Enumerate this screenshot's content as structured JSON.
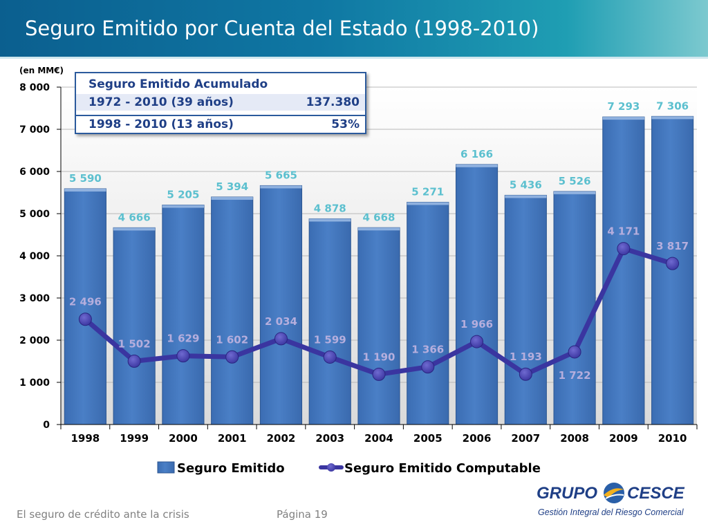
{
  "header": {
    "title": "Seguro Emitido por Cuenta del Estado (1998-2010)"
  },
  "summary_box": {
    "heading": "Seguro Emitido Acumulado",
    "rows": [
      {
        "label": "1972 - 2010 (39 años)",
        "value": "137.380"
      },
      {
        "label": "1998 - 2010  (13 años)",
        "value": "53%"
      }
    ]
  },
  "footer": {
    "left_text": "El seguro de crédito ante la crisis",
    "page_text": "Página 19"
  },
  "logo": {
    "name_left": "GRUPO",
    "name_right": "CESCE",
    "tagline": "Gestión Integral del Riesgo Comercial"
  },
  "colors": {
    "bar": "#4a7fc6",
    "line": "#3a35a0",
    "bar_label": "#5cc0cf",
    "line_label": "#b5aedd",
    "header": "#0f77a3"
  },
  "chart_data": {
    "type": "bar",
    "unit_label": "(en MM€)",
    "categories": [
      "1998",
      "1999",
      "2000",
      "2001",
      "2002",
      "2003",
      "2004",
      "2005",
      "2006",
      "2007",
      "2008",
      "2009",
      "2010"
    ],
    "series": [
      {
        "name": "Seguro Emitido",
        "type": "bar",
        "values": [
          5590,
          4666,
          5205,
          5394,
          5665,
          4878,
          4668,
          5271,
          6166,
          5436,
          5526,
          7293,
          7306
        ],
        "labels": [
          "5 590",
          "4 666",
          "5 205",
          "5 394",
          "5 665",
          "4 878",
          "4 668",
          "5 271",
          "6 166",
          "5 436",
          "5 526",
          "7 293",
          "7 306"
        ]
      },
      {
        "name": "Seguro Emitido Computable",
        "type": "line",
        "values": [
          2496,
          1502,
          1629,
          1602,
          2034,
          1599,
          1190,
          1366,
          1966,
          1193,
          1722,
          4171,
          3817
        ],
        "labels": [
          "2 496",
          "1 502",
          "1 629",
          "1 602",
          "2 034",
          "1 599",
          "1 190",
          "1 366",
          "1 966",
          "1 193",
          "1 722",
          "4 171",
          "3 817"
        ]
      }
    ],
    "ylim": [
      0,
      8000
    ],
    "yticks": [
      0,
      1000,
      2000,
      3000,
      4000,
      5000,
      6000,
      7000,
      8000
    ],
    "ytick_labels": [
      "0",
      "1 000",
      "2 000",
      "3 000",
      "4 000",
      "5 000",
      "6 000",
      "7 000",
      "8 000"
    ],
    "grid": true,
    "legend": "bottom"
  }
}
